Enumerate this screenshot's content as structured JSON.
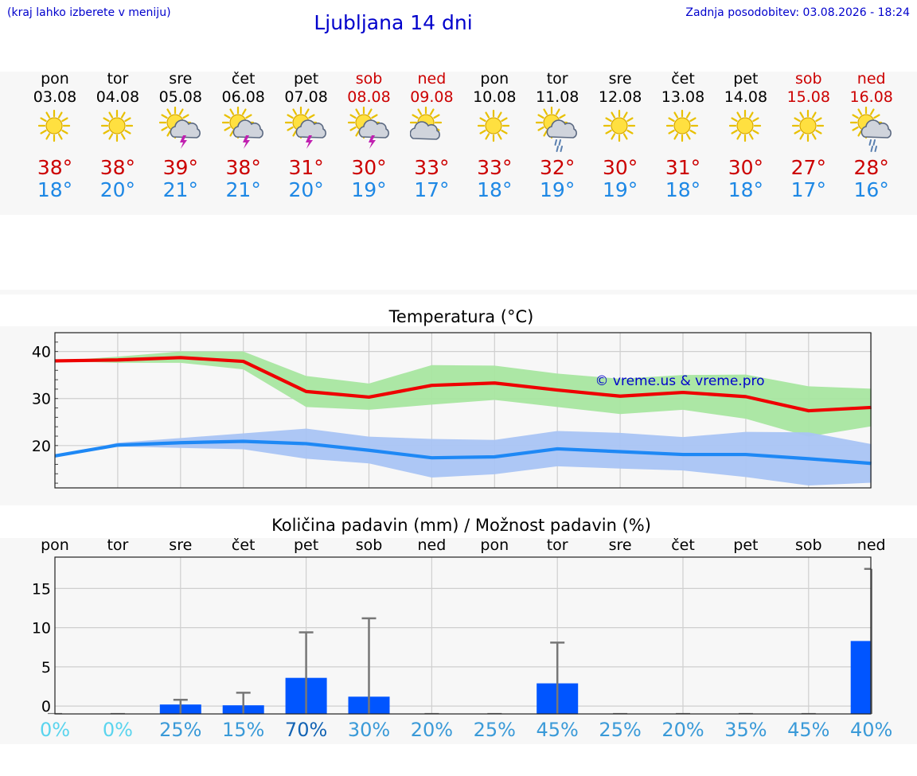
{
  "header": {
    "hint": "(kraj lahko izberete v meniju)",
    "title": "Ljubljana 14 dni",
    "updated": "Zadnja posodobitev: 03.08.2026 - 18:24"
  },
  "days": [
    {
      "name": "pon",
      "date": "03.08",
      "icon": "sun-icon",
      "tmax": "38°",
      "tmin": "18°",
      "weekend": false
    },
    {
      "name": "tor",
      "date": "04.08",
      "icon": "sun-icon",
      "tmax": "38°",
      "tmin": "20°",
      "weekend": false
    },
    {
      "name": "sre",
      "date": "05.08",
      "icon": "sun-cloud-thunder-icon",
      "tmax": "39°",
      "tmin": "21°",
      "weekend": false
    },
    {
      "name": "čet",
      "date": "06.08",
      "icon": "sun-cloud-thunder-icon",
      "tmax": "38°",
      "tmin": "21°",
      "weekend": false
    },
    {
      "name": "pet",
      "date": "07.08",
      "icon": "sun-cloud-thunder-icon",
      "tmax": "31°",
      "tmin": "20°",
      "weekend": false
    },
    {
      "name": "sob",
      "date": "08.08",
      "icon": "sun-cloud-thunder-icon",
      "tmax": "30°",
      "tmin": "19°",
      "weekend": true
    },
    {
      "name": "ned",
      "date": "09.08",
      "icon": "partly-cloudy-icon",
      "tmax": "33°",
      "tmin": "17°",
      "weekend": true
    },
    {
      "name": "pon",
      "date": "10.08",
      "icon": "sun-icon",
      "tmax": "33°",
      "tmin": "18°",
      "weekend": false
    },
    {
      "name": "tor",
      "date": "11.08",
      "icon": "sun-cloud-rain-icon",
      "tmax": "32°",
      "tmin": "19°",
      "weekend": false
    },
    {
      "name": "sre",
      "date": "12.08",
      "icon": "sun-icon",
      "tmax": "30°",
      "tmin": "19°",
      "weekend": false
    },
    {
      "name": "čet",
      "date": "13.08",
      "icon": "sun-icon",
      "tmax": "31°",
      "tmin": "18°",
      "weekend": false
    },
    {
      "name": "pet",
      "date": "14.08",
      "icon": "sun-icon",
      "tmax": "30°",
      "tmin": "18°",
      "weekend": false
    },
    {
      "name": "sob",
      "date": "15.08",
      "icon": "sun-icon",
      "tmax": "27°",
      "tmin": "17°",
      "weekend": true
    },
    {
      "name": "ned",
      "date": "16.08",
      "icon": "sun-cloud-rain-icon",
      "tmax": "28°",
      "tmin": "16°",
      "weekend": true
    }
  ],
  "colors": {
    "max_line": "#ee0000",
    "max_band": "#a8e6a0",
    "min_line": "#1e88f5",
    "min_band": "#a9c4f4",
    "bar": "#0055ff",
    "whisker": "#777777",
    "weekend": "#cc0000",
    "link": "#0000cc",
    "pct_low": "#5ad4ee",
    "pct_mid": "#3a9ad8",
    "pct_high": "#1464b4"
  },
  "chart_data": [
    {
      "type": "line",
      "title": "Temperatura (°C)",
      "watermark": "© vreme.us & vreme.pro",
      "ylim": [
        11,
        44
      ],
      "yticks": [
        20,
        30,
        40
      ],
      "grid": true,
      "series": [
        {
          "key": "max",
          "values": [
            38,
            38.2,
            38.7,
            37.9,
            31.5,
            30.3,
            32.8,
            33.3,
            31.8,
            30.5,
            31.3,
            30.4,
            27.4,
            28.1
          ],
          "band_low": [
            38,
            37.6,
            37.6,
            36.2,
            28.2,
            27.6,
            28.7,
            29.7,
            28.2,
            26.7,
            27.6,
            25.7,
            21.9,
            24.1
          ],
          "band_high": [
            38,
            38.9,
            40,
            40,
            34.8,
            33.2,
            37.1,
            37,
            35.3,
            34.2,
            35,
            35.1,
            32.6,
            32.1
          ]
        },
        {
          "key": "min",
          "values": [
            17.8,
            20.1,
            20.6,
            20.9,
            20.4,
            19,
            17.4,
            17.6,
            19.3,
            18.7,
            18.1,
            18.1,
            17.2,
            16.2
          ],
          "band_low": [
            17.8,
            19.8,
            19.5,
            19.2,
            17.2,
            16.2,
            13.2,
            13.9,
            15.6,
            15.1,
            14.7,
            13.3,
            11.5,
            12.1
          ],
          "band_high": [
            17.8,
            20.6,
            21.6,
            22.6,
            23.6,
            21.9,
            21.4,
            21.2,
            23.1,
            22.7,
            21.8,
            22.9,
            22.8,
            20.3
          ]
        }
      ]
    },
    {
      "type": "bar",
      "title": "Količina padavin (mm) / Možnost padavin (%)",
      "categories": [
        "pon",
        "tor",
        "sre",
        "čet",
        "pet",
        "sob",
        "ned",
        "pon",
        "tor",
        "sre",
        "čet",
        "pet",
        "sob",
        "ned"
      ],
      "ylim": [
        -1,
        19
      ],
      "yticks": [
        0,
        5,
        10,
        15
      ],
      "grid": true,
      "values": [
        0,
        0,
        0.2,
        0.1,
        3.6,
        1.2,
        0,
        0,
        2.9,
        0,
        0,
        0,
        0,
        8.3
      ],
      "whisker_max": [
        0,
        0,
        0.8,
        1.7,
        9.4,
        11.2,
        0,
        0,
        8.1,
        0,
        0,
        0,
        0,
        17.5
      ],
      "probability": [
        "0%",
        "0%",
        "25%",
        "15%",
        "70%",
        "30%",
        "20%",
        "25%",
        "45%",
        "25%",
        "20%",
        "35%",
        "45%",
        "40%"
      ]
    }
  ]
}
